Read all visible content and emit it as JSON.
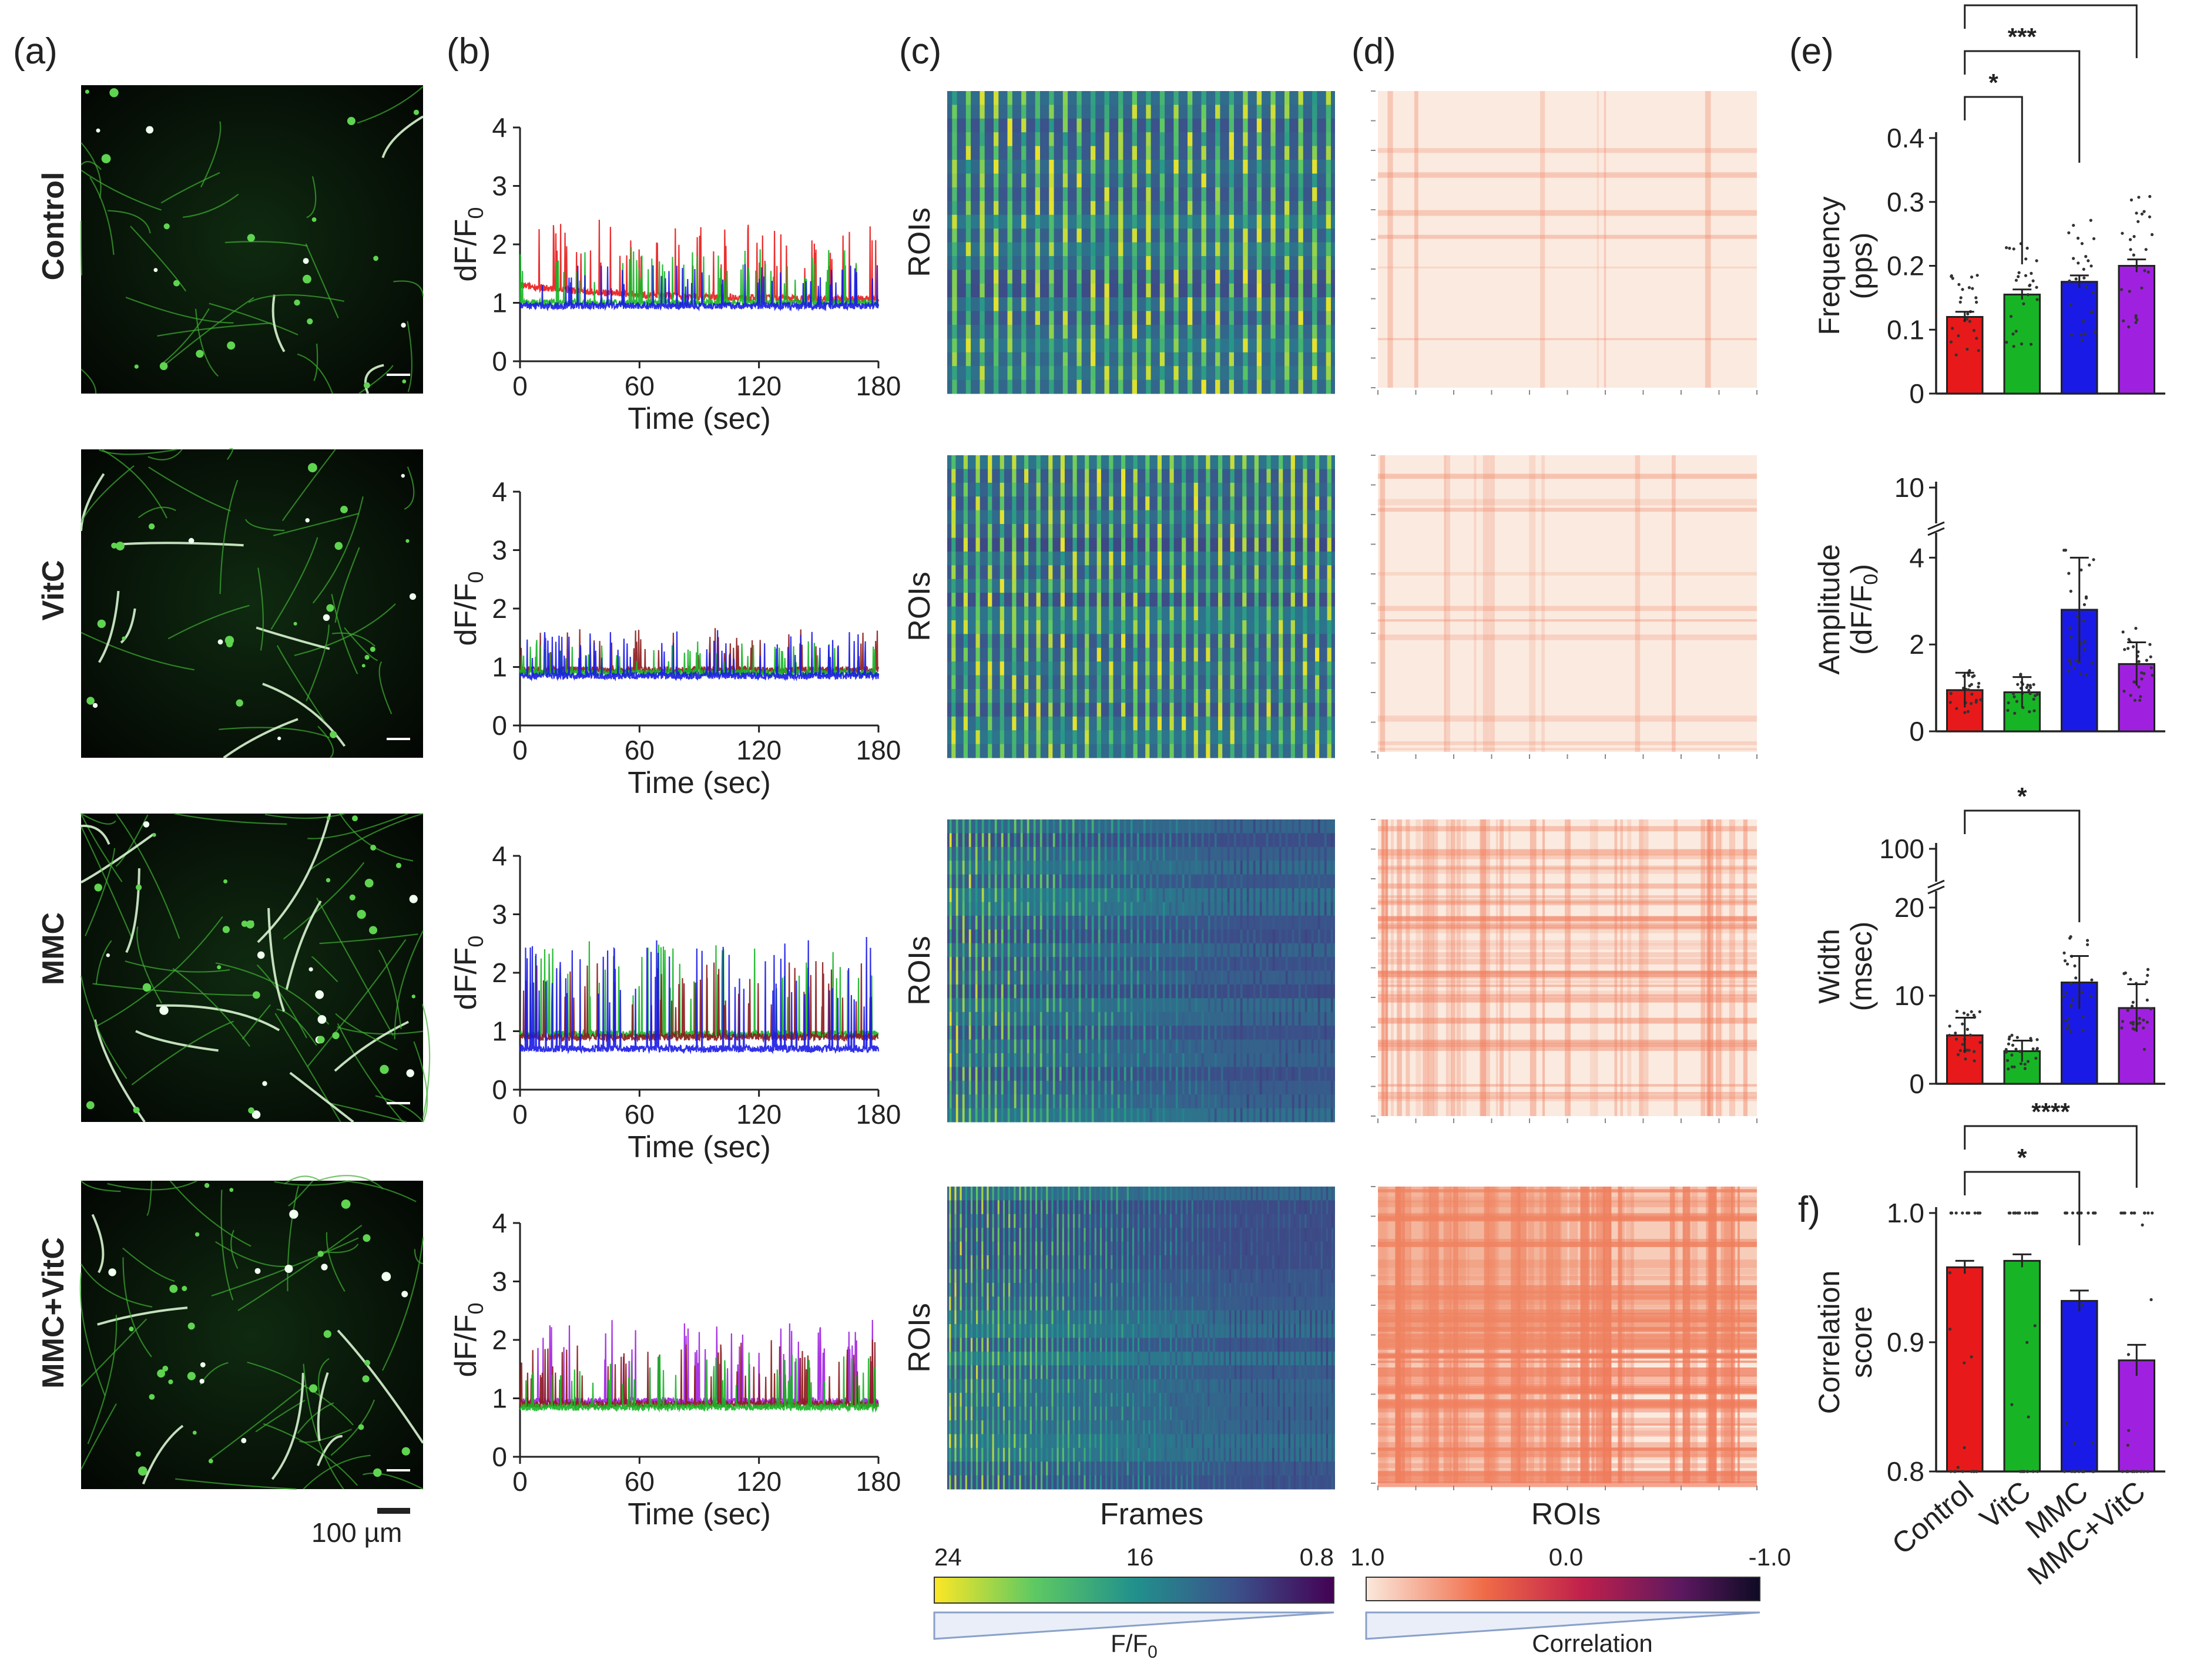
{
  "panel_labels": [
    "(a)",
    "(b)",
    "(c)",
    "(d)",
    "(e)",
    "f)"
  ],
  "conditions": [
    "Control",
    "VitC",
    "MMC",
    "MMC+VitC"
  ],
  "scale_bar": "100 µm",
  "colors": {
    "Control": "#e8191a",
    "VitC": "#17b526",
    "MMC": "#1a1ae6",
    "MMC+VitC": "#a020e0",
    "trace_dark_red": "#8b1a1a"
  },
  "traces": {
    "ylabel_main": "dF/F",
    "ylabel_sub": "0",
    "xlabel": "Time (sec)",
    "xticks": [
      "0",
      "60",
      "120",
      "180"
    ],
    "yticks": [
      "0",
      "1",
      "2",
      "3",
      "4"
    ],
    "x_range": [
      0,
      180
    ],
    "y_range": [
      0,
      4
    ]
  },
  "heatmaps": {
    "ylabel": "ROIs",
    "xlabel": "Frames",
    "colorbar_ticks": [
      "24",
      "16",
      "0.8"
    ],
    "colorbar_label_main": "F/F",
    "colorbar_label_sub": "0",
    "colormap": "viridis"
  },
  "correlation": {
    "xlabel": "ROIs",
    "colorbar_ticks": [
      "1.0",
      "0.0",
      "-1.0"
    ],
    "colorbar_label": "Correlation"
  },
  "chart_data": [
    {
      "type": "bar",
      "panel": "(e)",
      "categories": [
        "Control",
        "VitC",
        "MMC",
        "MMC+VitC"
      ],
      "values": [
        0.12,
        0.155,
        0.175,
        0.2
      ],
      "errors": [
        0.008,
        0.008,
        0.01,
        0.01
      ],
      "ylabel_line1": "Frequency",
      "ylabel_line2": "(pps)",
      "ylim": [
        0,
        0.4
      ],
      "yticks": [
        "0",
        "0.1",
        "0.2",
        "0.3",
        "0.4"
      ],
      "significance": [
        {
          "from": "Control",
          "to": "VitC",
          "label": "*"
        },
        {
          "from": "Control",
          "to": "MMC",
          "label": "***"
        },
        {
          "from": "Control",
          "to": "MMC+VitC",
          "label": "****"
        }
      ]
    },
    {
      "type": "bar",
      "panel": "(e)",
      "categories": [
        "Control",
        "VitC",
        "MMC",
        "MMC+VitC"
      ],
      "values": [
        0.95,
        0.9,
        2.8,
        1.55
      ],
      "errors": [
        0.4,
        0.35,
        1.2,
        0.5
      ],
      "ylabel_line1": "Amplitude",
      "ylabel_line2_main": "(dF/F",
      "ylabel_line2_sub": "0",
      "ylabel_line2_end": ")",
      "ylim": [
        0,
        10
      ],
      "axis_break": true,
      "yticks": [
        "0",
        "2",
        "4",
        "10"
      ],
      "significance": []
    },
    {
      "type": "bar",
      "panel": "(e)",
      "categories": [
        "Control",
        "VitC",
        "MMC",
        "MMC+VitC"
      ],
      "values": [
        5.5,
        3.7,
        11.5,
        8.6
      ],
      "errors": [
        2.0,
        1.2,
        3.0,
        2.7
      ],
      "ylabel_line1": "Width",
      "ylabel_line2": "(msec)",
      "ylim": [
        0,
        100
      ],
      "axis_break": true,
      "yticks": [
        "0",
        "10",
        "20",
        "100"
      ],
      "significance": [
        {
          "from": "Control",
          "to": "MMC",
          "label": "*"
        }
      ]
    },
    {
      "type": "bar",
      "panel": "f)",
      "categories": [
        "Control",
        "VitC",
        "MMC",
        "MMC+VitC"
      ],
      "values": [
        0.958,
        0.963,
        0.932,
        0.886
      ],
      "errors": [
        0.005,
        0.005,
        0.008,
        0.012
      ],
      "ylabel_line1": "Correlation",
      "ylabel_line2": "score",
      "ylim": [
        0.8,
        1.0
      ],
      "yticks": [
        "0.8",
        "0.9",
        "1.0"
      ],
      "significance": [
        {
          "from": "Control",
          "to": "MMC",
          "label": "*"
        },
        {
          "from": "Control",
          "to": "MMC+VitC",
          "label": "****"
        }
      ]
    }
  ]
}
